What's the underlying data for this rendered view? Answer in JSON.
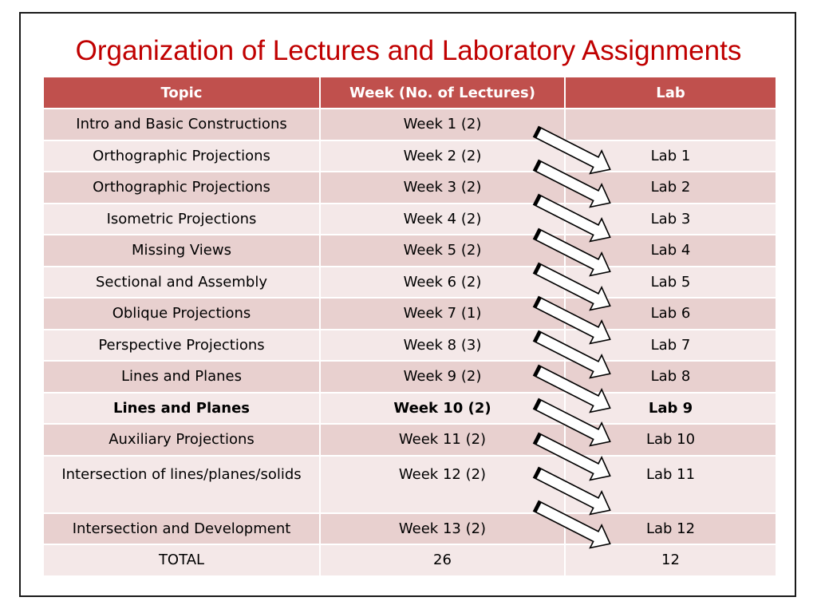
{
  "title": "Organization of Lectures and Laboratory Assignments",
  "headers": {
    "topic": "Topic",
    "week": "Week (No. of Lectures)",
    "lab": "Lab"
  },
  "rows": [
    {
      "topic": "Intro and Basic Constructions",
      "week": "Week 1 (2)",
      "lab": ""
    },
    {
      "topic": "Orthographic Projections",
      "week": "Week 2 (2)",
      "lab": "Lab 1"
    },
    {
      "topic": "Orthographic Projections",
      "week": "Week 3 (2)",
      "lab": "Lab 2"
    },
    {
      "topic": "Isometric Projections",
      "week": "Week 4 (2)",
      "lab": "Lab 3"
    },
    {
      "topic": "Missing Views",
      "week": "Week 5 (2)",
      "lab": "Lab 4"
    },
    {
      "topic": "Sectional and Assembly",
      "week": "Week 6 (2)",
      "lab": "Lab 5"
    },
    {
      "topic": "Oblique Projections",
      "week": "Week 7 (1)",
      "lab": "Lab 6"
    },
    {
      "topic": "Perspective Projections",
      "week": "Week 8 (3)",
      "lab": "Lab 7"
    },
    {
      "topic": "Lines and Planes",
      "week": "Week 9 (2)",
      "lab": "Lab 8"
    },
    {
      "topic": "Lines and Planes",
      "week": "Week 10 (2)",
      "lab": "Lab 9"
    },
    {
      "topic": "Auxiliary Projections",
      "week": "Week 11 (2)",
      "lab": "Lab 10"
    },
    {
      "topic": "Intersection of lines/planes/solids",
      "week": "Week 12 (2)",
      "lab": "Lab 11"
    },
    {
      "topic": "Intersection and Development",
      "week": "Week 13 (2)",
      "lab": "Lab 12"
    }
  ],
  "total": {
    "topic": "TOTAL",
    "week": "26",
    "lab": "12"
  },
  "colors": {
    "title": "#c00000",
    "header_bg": "#c0504d",
    "row_dark": "#e8d0cf",
    "row_light": "#f4e8e8"
  },
  "arrow_icon": "block-arrow-right-down"
}
